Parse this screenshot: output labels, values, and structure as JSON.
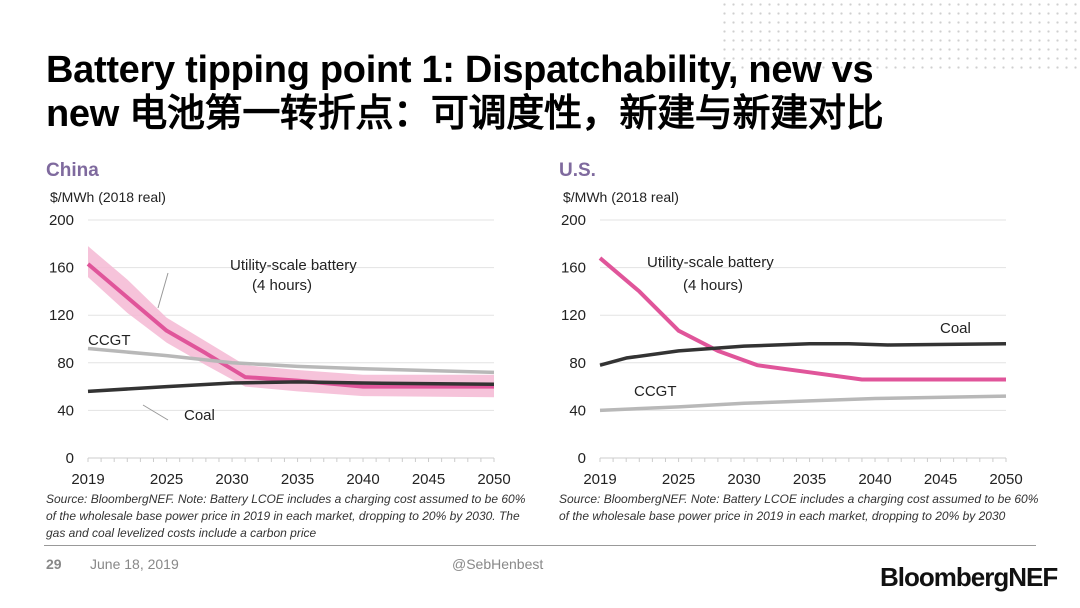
{
  "slide": {
    "title_line1": "Battery tipping point 1: Dispatchability, new vs",
    "title_line2": "new 电池第一转折点：可调度性，新建与新建对比",
    "page_number": "29",
    "date": "June 18, 2019",
    "handle": "@SebHenbest",
    "logo_text": "BloombergNEF"
  },
  "colors": {
    "battery": "#e0559a",
    "band": "#f5b8d3",
    "ccgt": "#b8b8b8",
    "coal": "#333333",
    "region": "#7f6a9e"
  },
  "chart_data": [
    {
      "type": "line",
      "title": "China",
      "ylabel": "$/MWh (2018 real)",
      "ylim": [
        0,
        200
      ],
      "yticks": [
        "0",
        "40",
        "80",
        "120",
        "160",
        "200"
      ],
      "xticks": [
        "2019",
        "2025",
        "2030",
        "2035",
        "2040",
        "2045",
        "2050"
      ],
      "xlim": [
        2019,
        2050
      ],
      "grid": true,
      "note": "Source: BloombergNEF. Note: Battery LCOE includes a charging cost assumed to be 60% of the wholesale base power price in 2019 in each market, dropping to 20% by 2030. The gas and coal levelized costs include a carbon price",
      "series": [
        {
          "name": "Utility-scale battery (4 hours)",
          "label_line1": "Utility-scale battery",
          "label_line2": "(4 hours)",
          "x": [
            2019,
            2022,
            2025,
            2028,
            2031,
            2035,
            2040,
            2050
          ],
          "y": [
            163,
            135,
            107,
            88,
            68,
            65,
            60,
            60
          ],
          "band_upper": [
            178,
            150,
            118,
            98,
            78,
            74,
            70,
            70
          ],
          "band_lower": [
            152,
            122,
            97,
            78,
            60,
            56,
            52,
            51
          ]
        },
        {
          "name": "CCGT",
          "x": [
            2019,
            2025,
            2030,
            2035,
            2040,
            2050
          ],
          "y": [
            92,
            86,
            80,
            77,
            75,
            72
          ]
        },
        {
          "name": "Coal",
          "x": [
            2019,
            2025,
            2030,
            2035,
            2040,
            2050
          ],
          "y": [
            56,
            60,
            63,
            64,
            63,
            62
          ]
        }
      ]
    },
    {
      "type": "line",
      "title": "U.S.",
      "ylabel": "$/MWh (2018 real)",
      "ylim": [
        0,
        200
      ],
      "yticks": [
        "0",
        "40",
        "80",
        "120",
        "160",
        "200"
      ],
      "xticks": [
        "2019",
        "2025",
        "2030",
        "2035",
        "2040",
        "2045",
        "2050"
      ],
      "xlim": [
        2019,
        2050
      ],
      "grid": true,
      "note": "Source: BloombergNEF. Note: Battery LCOE includes a charging cost assumed to be 60% of the wholesale base power price in 2019 in each market, dropping to 20% by 2030",
      "series": [
        {
          "name": "Utility-scale battery (4 hours)",
          "label_line1": "Utility-scale battery",
          "label_line2": "(4 hours)",
          "x": [
            2019,
            2022,
            2025,
            2028,
            2031,
            2035,
            2039,
            2050
          ],
          "y": [
            168,
            140,
            107,
            90,
            78,
            72,
            66,
            66
          ]
        },
        {
          "name": "Coal",
          "x": [
            2019,
            2021,
            2025,
            2030,
            2035,
            2038,
            2041,
            2050
          ],
          "y": [
            78,
            84,
            90,
            94,
            96,
            96,
            95,
            96
          ]
        },
        {
          "name": "CCGT",
          "x": [
            2019,
            2025,
            2030,
            2035,
            2040,
            2050
          ],
          "y": [
            40,
            43,
            46,
            48,
            50,
            52
          ]
        }
      ]
    }
  ]
}
